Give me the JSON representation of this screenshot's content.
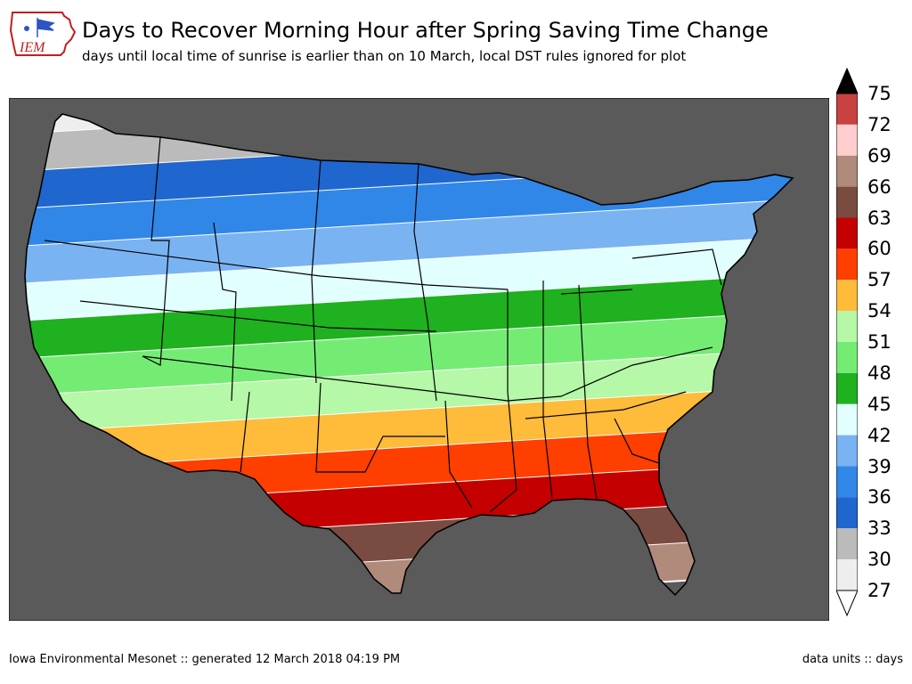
{
  "header": {
    "logo_text": "IEM",
    "title": "Days to Recover Morning Hour after Spring Saving Time Change",
    "subtitle": "days until local time of sunrise is earlier than on 10 March, local DST rules ignored for plot"
  },
  "legend": {
    "ticks": [
      "75",
      "72",
      "69",
      "66",
      "63",
      "60",
      "57",
      "54",
      "51",
      "48",
      "45",
      "42",
      "39",
      "36",
      "33",
      "30",
      "27"
    ],
    "bins": [
      {
        "from": 27,
        "to": 30,
        "color": "#eeeeee"
      },
      {
        "from": 30,
        "to": 33,
        "color": "#bbbbbb"
      },
      {
        "from": 33,
        "to": 36,
        "color": "#1f66cf"
      },
      {
        "from": 36,
        "to": 39,
        "color": "#3087e8"
      },
      {
        "from": 39,
        "to": 42,
        "color": "#7ab3f2"
      },
      {
        "from": 42,
        "to": 45,
        "color": "#e2ffff"
      },
      {
        "from": 45,
        "to": 48,
        "color": "#1fb11f"
      },
      {
        "from": 48,
        "to": 51,
        "color": "#74ec74"
      },
      {
        "from": 51,
        "to": 54,
        "color": "#b5f8a7"
      },
      {
        "from": 54,
        "to": 57,
        "color": "#ffbb3a"
      },
      {
        "from": 57,
        "to": 60,
        "color": "#ff3f00"
      },
      {
        "from": 60,
        "to": 63,
        "color": "#c40000"
      },
      {
        "from": 63,
        "to": 66,
        "color": "#7a4b40"
      },
      {
        "from": 66,
        "to": 69,
        "color": "#b08a7b"
      },
      {
        "from": 69,
        "to": 72,
        "color": "#ffcdcd"
      },
      {
        "from": 72,
        "to": 75,
        "color": "#c84242"
      }
    ],
    "over_color": "#000000",
    "under_color": "#ffffff"
  },
  "colors": {
    "background_land": "#5a5a5a",
    "boundary": "#000000",
    "contour_line": "#ffffff"
  },
  "footer": {
    "left": "Iowa Environmental Mesonet :: generated 12 March 2018 04:19 PM",
    "right": "data units :: days"
  }
}
